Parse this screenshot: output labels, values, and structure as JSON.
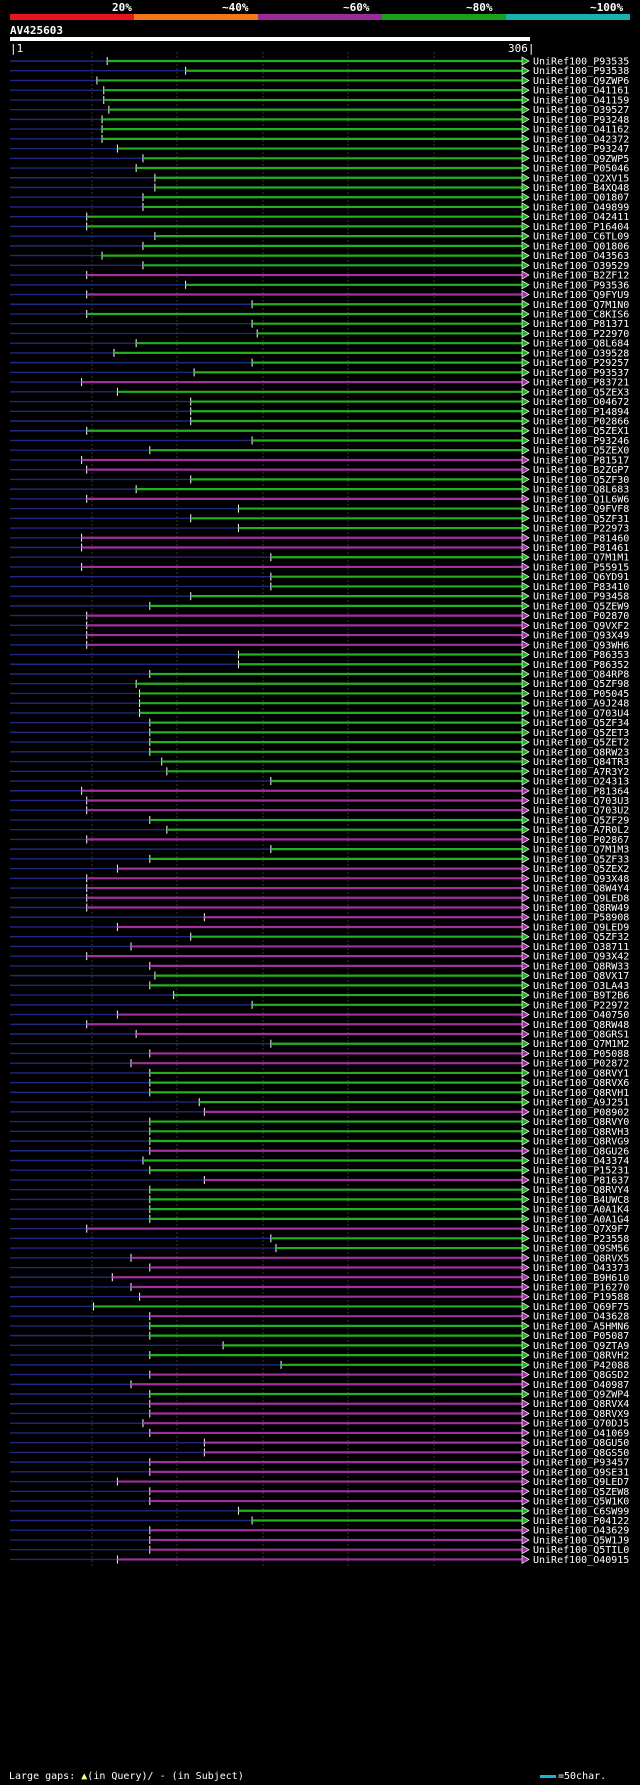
{
  "legend": {
    "labels": [
      "20%",
      "~40%",
      "~60%",
      "~80%",
      "~100%"
    ],
    "colors": [
      "#e8141c",
      "#f07818",
      "#9c2a9a",
      "#1aa01a",
      "#1ab0b0"
    ]
  },
  "query": {
    "name": "AV425603",
    "start": "1",
    "end": "306",
    "length": 306
  },
  "footer": {
    "gaps_label": "Large gaps:",
    "query_gap": "(in Query)/",
    "subject_gap": "- (in Subject)",
    "scale": "=50char."
  },
  "colors": {
    "green": "#22b022",
    "magenta": "#a030a0",
    "navy": "#202880",
    "gap": "#ffff80"
  },
  "chart_data": {
    "type": "alignment",
    "title": "AV425603",
    "x_range": [
      1,
      306
    ],
    "hits": [
      {
        "name": "UniRef100_P93535",
        "start": 58,
        "color": "green"
      },
      {
        "name": "UniRef100_P93538",
        "start": 104,
        "color": "green"
      },
      {
        "name": "UniRef100_Q9ZWP6",
        "start": 52,
        "color": "green"
      },
      {
        "name": "UniRef100_O41161",
        "start": 56,
        "color": "green"
      },
      {
        "name": "UniRef100_O41159",
        "start": 56,
        "color": "green"
      },
      {
        "name": "UniRef100_O39527",
        "start": 59,
        "color": "green"
      },
      {
        "name": "UniRef100_P93248",
        "start": 55,
        "color": "green"
      },
      {
        "name": "UniRef100_O41162",
        "start": 55,
        "color": "green"
      },
      {
        "name": "UniRef100_O42372",
        "start": 55,
        "color": "green"
      },
      {
        "name": "UniRef100_P93247",
        "start": 64,
        "color": "green"
      },
      {
        "name": "UniRef100_Q9ZWP5",
        "start": 79,
        "color": "green"
      },
      {
        "name": "UniRef100_P05046",
        "start": 75,
        "color": "green"
      },
      {
        "name": "UniRef100_Q2XV15",
        "start": 86,
        "color": "green"
      },
      {
        "name": "UniRef100_B4XQ48",
        "start": 86,
        "color": "green"
      },
      {
        "name": "UniRef100_Q01807",
        "start": 79,
        "color": "green"
      },
      {
        "name": "UniRef100_O49899",
        "start": 79,
        "color": "green"
      },
      {
        "name": "UniRef100_O42411",
        "start": 46,
        "color": "green"
      },
      {
        "name": "UniRef100_P16404",
        "start": 46,
        "color": "green"
      },
      {
        "name": "UniRef100_C6TL09",
        "start": 86,
        "color": "green"
      },
      {
        "name": "UniRef100_Q01806",
        "start": 79,
        "color": "green"
      },
      {
        "name": "UniRef100_O43563",
        "start": 55,
        "color": "green"
      },
      {
        "name": "UniRef100_O39529",
        "start": 79,
        "color": "green"
      },
      {
        "name": "UniRef100_B2ZF12",
        "start": 46,
        "color": "magenta"
      },
      {
        "name": "UniRef100_P93536",
        "start": 104,
        "color": "green"
      },
      {
        "name": "UniRef100_Q9FYU9",
        "start": 46,
        "color": "magenta"
      },
      {
        "name": "UniRef100_Q7M1N0",
        "start": 143,
        "color": "green"
      },
      {
        "name": "UniRef100_C8KIS6",
        "start": 46,
        "color": "green"
      },
      {
        "name": "UniRef100_P81371",
        "start": 143,
        "color": "green"
      },
      {
        "name": "UniRef100_P22970",
        "start": 146,
        "color": "green"
      },
      {
        "name": "UniRef100_Q8L684",
        "start": 75,
        "color": "green"
      },
      {
        "name": "UniRef100_O39528",
        "start": 62,
        "color": "green"
      },
      {
        "name": "UniRef100_P29257",
        "start": 143,
        "color": "green"
      },
      {
        "name": "UniRef100_P93537",
        "start": 109,
        "color": "green"
      },
      {
        "name": "UniRef100_P83721",
        "start": 43,
        "color": "magenta"
      },
      {
        "name": "UniRef100_Q5ZEX3",
        "start": 64,
        "color": "green"
      },
      {
        "name": "UniRef100_O04672",
        "start": 107,
        "color": "green"
      },
      {
        "name": "UniRef100_P14894",
        "start": 107,
        "color": "green"
      },
      {
        "name": "UniRef100_P02866",
        "start": 107,
        "color": "green"
      },
      {
        "name": "UniRef100_Q5ZEX1",
        "start": 46,
        "color": "green"
      },
      {
        "name": "UniRef100_P93246",
        "start": 143,
        "color": "green"
      },
      {
        "name": "UniRef100_Q5ZEX0",
        "start": 83,
        "color": "green"
      },
      {
        "name": "UniRef100_P81517",
        "start": 43,
        "color": "magenta"
      },
      {
        "name": "UniRef100_B2ZGP7",
        "start": 46,
        "color": "magenta"
      },
      {
        "name": "UniRef100_Q5ZF30",
        "start": 107,
        "color": "green"
      },
      {
        "name": "UniRef100_Q8L683",
        "start": 75,
        "color": "green"
      },
      {
        "name": "UniRef100_Q1L6W6",
        "start": 46,
        "color": "magenta"
      },
      {
        "name": "UniRef100_Q9FVF8",
        "start": 135,
        "color": "green"
      },
      {
        "name": "UniRef100_Q5ZF31",
        "start": 107,
        "color": "green"
      },
      {
        "name": "UniRef100_P22973",
        "start": 135,
        "color": "green"
      },
      {
        "name": "UniRef100_P81460",
        "start": 43,
        "color": "magenta"
      },
      {
        "name": "UniRef100_P81461",
        "start": 43,
        "color": "magenta"
      },
      {
        "name": "UniRef100_Q7M1M1",
        "start": 154,
        "color": "green"
      },
      {
        "name": "UniRef100_P55915",
        "start": 43,
        "color": "magenta"
      },
      {
        "name": "UniRef100_Q6YD91",
        "start": 154,
        "color": "green"
      },
      {
        "name": "UniRef100_P83410",
        "start": 154,
        "color": "green"
      },
      {
        "name": "UniRef100_P93458",
        "start": 107,
        "color": "green"
      },
      {
        "name": "UniRef100_Q5ZEW9",
        "start": 83,
        "color": "green"
      },
      {
        "name": "UniRef100_P02870",
        "start": 46,
        "color": "magenta"
      },
      {
        "name": "UniRef100_Q9VXF2",
        "start": 46,
        "color": "magenta"
      },
      {
        "name": "UniRef100_Q93X49",
        "start": 46,
        "color": "magenta"
      },
      {
        "name": "UniRef100_Q93WH6",
        "start": 46,
        "color": "magenta"
      },
      {
        "name": "UniRef100_P86353",
        "start": 135,
        "color": "green"
      },
      {
        "name": "UniRef100_P86352",
        "start": 135,
        "color": "green"
      },
      {
        "name": "UniRef100_Q84RP8",
        "start": 83,
        "color": "green"
      },
      {
        "name": "UniRef100_Q5ZF98",
        "start": 75,
        "color": "green"
      },
      {
        "name": "UniRef100_P05045",
        "start": 77,
        "color": "green"
      },
      {
        "name": "UniRef100_A9J248",
        "start": 77,
        "color": "green"
      },
      {
        "name": "UniRef100_Q703U4",
        "start": 77,
        "color": "green"
      },
      {
        "name": "UniRef100_Q5ZF34",
        "start": 83,
        "color": "green"
      },
      {
        "name": "UniRef100_Q5ZET3",
        "start": 83,
        "color": "green"
      },
      {
        "name": "UniRef100_Q5ZET2",
        "start": 83,
        "color": "green"
      },
      {
        "name": "UniRef100_Q8RW23",
        "start": 83,
        "color": "green"
      },
      {
        "name": "UniRef100_Q84TR3",
        "start": 90,
        "color": "green"
      },
      {
        "name": "UniRef100_A7R3Y2",
        "start": 93,
        "color": "green"
      },
      {
        "name": "UniRef100_O24313",
        "start": 154,
        "color": "green"
      },
      {
        "name": "UniRef100_P81364",
        "start": 43,
        "color": "magenta"
      },
      {
        "name": "UniRef100_Q703U3",
        "start": 46,
        "color": "magenta"
      },
      {
        "name": "UniRef100_Q703U2",
        "start": 46,
        "color": "magenta"
      },
      {
        "name": "UniRef100_Q5ZF29",
        "start": 83,
        "color": "green"
      },
      {
        "name": "UniRef100_A7R0L2",
        "start": 93,
        "color": "green"
      },
      {
        "name": "UniRef100_P02867",
        "start": 46,
        "color": "magenta"
      },
      {
        "name": "UniRef100_Q7M1M3",
        "start": 154,
        "color": "green"
      },
      {
        "name": "UniRef100_Q5ZF33",
        "start": 83,
        "color": "green"
      },
      {
        "name": "UniRef100_Q5ZEX2",
        "start": 64,
        "color": "magenta"
      },
      {
        "name": "UniRef100_Q93X48",
        "start": 46,
        "color": "magenta"
      },
      {
        "name": "UniRef100_Q8W4Y4",
        "start": 46,
        "color": "magenta"
      },
      {
        "name": "UniRef100_Q9LED8",
        "start": 46,
        "color": "magenta"
      },
      {
        "name": "UniRef100_Q8RW49",
        "start": 46,
        "color": "magenta"
      },
      {
        "name": "UniRef100_P58908",
        "start": 115,
        "color": "magenta"
      },
      {
        "name": "UniRef100_Q9LED9",
        "start": 64,
        "color": "magenta"
      },
      {
        "name": "UniRef100_Q5ZF32",
        "start": 107,
        "color": "green"
      },
      {
        "name": "UniRef100_O38711",
        "start": 72,
        "color": "magenta"
      },
      {
        "name": "UniRef100_Q93X42",
        "start": 46,
        "color": "magenta"
      },
      {
        "name": "UniRef100_Q8RW33",
        "start": 83,
        "color": "magenta"
      },
      {
        "name": "UniRef100_Q8VX17",
        "start": 86,
        "color": "green"
      },
      {
        "name": "UniRef100_O3LA43",
        "start": 83,
        "color": "green"
      },
      {
        "name": "UniRef100_B9T2B6",
        "start": 97,
        "color": "green"
      },
      {
        "name": "UniRef100_P22972",
        "start": 143,
        "color": "green"
      },
      {
        "name": "UniRef100_O40750",
        "start": 64,
        "color": "magenta"
      },
      {
        "name": "UniRef100_Q8RW48",
        "start": 46,
        "color": "magenta"
      },
      {
        "name": "UniRef100_Q8GRS1",
        "start": 75,
        "color": "magenta"
      },
      {
        "name": "UniRef100_Q7M1M2",
        "start": 154,
        "color": "green"
      },
      {
        "name": "UniRef100_P05088",
        "start": 83,
        "color": "magenta"
      },
      {
        "name": "UniRef100_P02872",
        "start": 72,
        "color": "magenta"
      },
      {
        "name": "UniRef100_Q8RVY1",
        "start": 83,
        "color": "green"
      },
      {
        "name": "UniRef100_Q8RVX6",
        "start": 83,
        "color": "green"
      },
      {
        "name": "UniRef100_Q8RVH1",
        "start": 83,
        "color": "green"
      },
      {
        "name": "UniRef100_A9J251",
        "start": 112,
        "color": "green"
      },
      {
        "name": "UniRef100_P08902",
        "start": 115,
        "color": "magenta"
      },
      {
        "name": "UniRef100_Q8RVY0",
        "start": 83,
        "color": "green"
      },
      {
        "name": "UniRef100_Q8RVH3",
        "start": 83,
        "color": "green"
      },
      {
        "name": "UniRef100_Q8RVG9",
        "start": 83,
        "color": "green"
      },
      {
        "name": "UniRef100_Q8GU26",
        "start": 83,
        "color": "magenta"
      },
      {
        "name": "UniRef100_O43374",
        "start": 79,
        "color": "green"
      },
      {
        "name": "UniRef100_P15231",
        "start": 83,
        "color": "green"
      },
      {
        "name": "UniRef100_P81637",
        "start": 115,
        "color": "magenta"
      },
      {
        "name": "UniRef100_Q8RVY4",
        "start": 83,
        "color": "green"
      },
      {
        "name": "UniRef100_B4UWC8",
        "start": 83,
        "color": "green"
      },
      {
        "name": "UniRef100_A0A1K4",
        "start": 83,
        "color": "green"
      },
      {
        "name": "UniRef100_A0A1G4",
        "start": 83,
        "color": "green"
      },
      {
        "name": "UniRef100_Q7X9F7",
        "start": 46,
        "color": "magenta"
      },
      {
        "name": "UniRef100_P23558",
        "start": 154,
        "color": "green"
      },
      {
        "name": "UniRef100_Q9SM56",
        "start": 157,
        "color": "green"
      },
      {
        "name": "UniRef100_Q8RVX5",
        "start": 72,
        "color": "magenta"
      },
      {
        "name": "UniRef100_O43373",
        "start": 83,
        "color": "magenta"
      },
      {
        "name": "UniRef100_B9H610",
        "start": 61,
        "color": "magenta"
      },
      {
        "name": "UniRef100_P16270",
        "start": 72,
        "color": "magenta"
      },
      {
        "name": "UniRef100_P19588",
        "start": 77,
        "color": "magenta"
      },
      {
        "name": "UniRef100_Q69F75",
        "start": 50,
        "color": "green"
      },
      {
        "name": "UniRef100_O43628",
        "start": 83,
        "color": "magenta"
      },
      {
        "name": "UniRef100_A5HMN6",
        "start": 83,
        "color": "green"
      },
      {
        "name": "UniRef100_P05087",
        "start": 83,
        "color": "green"
      },
      {
        "name": "UniRef100_Q9ZTA9",
        "start": 126,
        "color": "green"
      },
      {
        "name": "UniRef100_Q8RVH2",
        "start": 83,
        "color": "green"
      },
      {
        "name": "UniRef100_P42088",
        "start": 160,
        "color": "green"
      },
      {
        "name": "UniRef100_Q8GSD2",
        "start": 83,
        "color": "magenta"
      },
      {
        "name": "UniRef100_O40987",
        "start": 72,
        "color": "magenta"
      },
      {
        "name": "UniRef100_Q9ZWP4",
        "start": 83,
        "color": "green"
      },
      {
        "name": "UniRef100_Q8RVX4",
        "start": 83,
        "color": "magenta"
      },
      {
        "name": "UniRef100_Q8RVX9",
        "start": 83,
        "color": "magenta"
      },
      {
        "name": "UniRef100_Q70DJ5",
        "start": 79,
        "color": "magenta"
      },
      {
        "name": "UniRef100_O41069",
        "start": 83,
        "color": "magenta"
      },
      {
        "name": "UniRef100_Q8GU50",
        "start": 115,
        "color": "magenta"
      },
      {
        "name": "UniRef100_Q8GS50",
        "start": 115,
        "color": "magenta"
      },
      {
        "name": "UniRef100_P93457",
        "start": 83,
        "color": "magenta"
      },
      {
        "name": "UniRef100_Q9SE31",
        "start": 83,
        "color": "magenta"
      },
      {
        "name": "UniRef100_Q9LED7",
        "start": 64,
        "color": "magenta"
      },
      {
        "name": "UniRef100_Q5ZEW8",
        "start": 83,
        "color": "magenta"
      },
      {
        "name": "UniRef100_Q5W1K0",
        "start": 83,
        "color": "magenta"
      },
      {
        "name": "UniRef100_C6SW99",
        "start": 135,
        "color": "green"
      },
      {
        "name": "UniRef100_P04122",
        "start": 143,
        "color": "green"
      },
      {
        "name": "UniRef100_O43629",
        "start": 83,
        "color": "magenta"
      },
      {
        "name": "UniRef100_Q5W1J9",
        "start": 83,
        "color": "magenta"
      },
      {
        "name": "UniRef100_Q5TIL0",
        "start": 83,
        "color": "magenta"
      },
      {
        "name": "UniRef100_O40915",
        "start": 64,
        "color": "magenta"
      }
    ]
  }
}
